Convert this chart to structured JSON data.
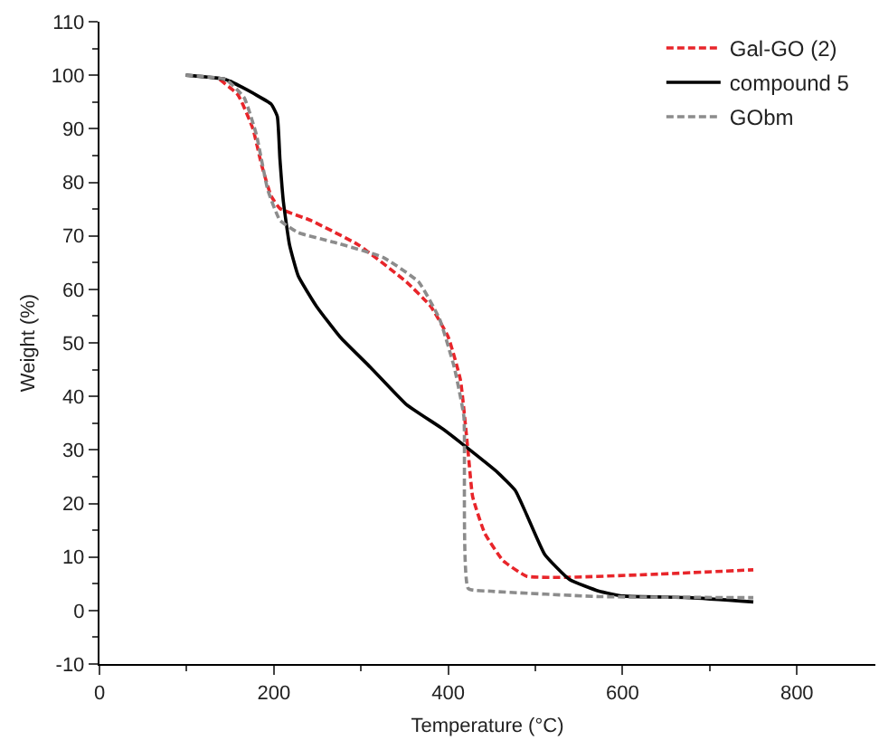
{
  "chart_data": {
    "type": "line",
    "xlabel": "Temperature (°C)",
    "ylabel": "Weight (%)",
    "xlim": [
      0,
      890
    ],
    "xticks": [
      0,
      200,
      400,
      600,
      800
    ],
    "ylim": [
      -10,
      110
    ],
    "yticks": [
      -10,
      0,
      10,
      20,
      30,
      40,
      50,
      60,
      70,
      80,
      90,
      100,
      110
    ],
    "grid": false,
    "legend": "top right",
    "marker": "none",
    "series": [
      {
        "name": "Gal-GO (2)",
        "color": "#e8252a",
        "line_style": "dashed",
        "x": [
          138,
          159,
          176,
          186,
          197,
          207,
          242,
          297,
          352,
          380,
          400,
          414,
          423,
          428,
          442,
          463,
          490,
          539,
          642,
          750
        ],
        "values": [
          99.2,
          96.3,
          90,
          83.2,
          77.4,
          75.1,
          72.9,
          68.3,
          61.4,
          56.8,
          51.1,
          43.1,
          29.3,
          21.3,
          14.4,
          9.3,
          6.4,
          6.2,
          6.8,
          7.6
        ]
      },
      {
        "name": "compound 5",
        "color": "#000000",
        "line_style": "solid",
        "x": [
          99,
          145,
          180,
          197,
          204,
          207,
          211,
          218,
          228,
          249,
          276,
          311,
          352,
          394,
          421,
          456,
          477,
          490,
          511,
          539,
          573,
          601,
          677,
          750
        ],
        "values": [
          100,
          99.2,
          96.3,
          94.6,
          92.3,
          84.3,
          76.3,
          68.3,
          62.5,
          56.8,
          51.1,
          45.4,
          38.5,
          33.9,
          30.5,
          25.9,
          22.4,
          17.9,
          10.4,
          5.8,
          3.6,
          2.7,
          2.4,
          1.6
        ]
      },
      {
        "name": "GObm",
        "color": "#8c8c8c",
        "line_style": "dashed",
        "x": [
          99,
          145,
          166,
          180,
          193,
          207,
          228,
          269,
          325,
          366,
          390,
          407,
          418,
          423,
          449,
          573,
          750
        ],
        "values": [
          100,
          99.2,
          95.8,
          88.9,
          78.6,
          72.9,
          70.6,
          68.8,
          66,
          61.4,
          54.5,
          45.4,
          36.2,
          4.1,
          3.6,
          2.6,
          2.4
        ]
      }
    ]
  }
}
